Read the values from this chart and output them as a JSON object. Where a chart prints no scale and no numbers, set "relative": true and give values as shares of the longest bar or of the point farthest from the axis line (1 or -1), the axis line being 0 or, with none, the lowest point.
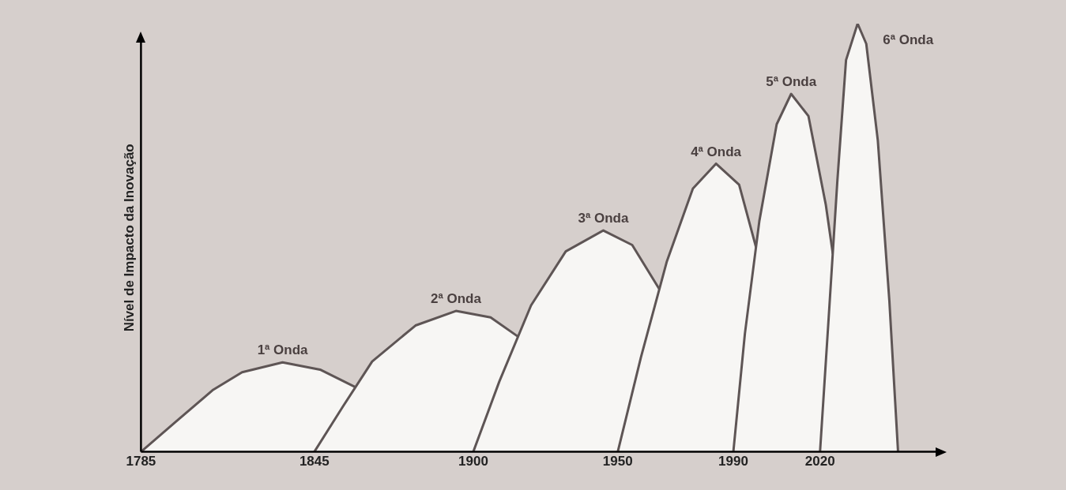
{
  "chart_data": {
    "type": "area",
    "ylabel": "Nível de Impacto da Inovação",
    "relative": true,
    "grid": false,
    "legend": false,
    "marker": "none",
    "xlim": [
      1785,
      2060
    ],
    "xticks": [
      1785,
      1845,
      1900,
      1950,
      1990,
      2020
    ],
    "series": [
      {
        "name": "1ª Onda",
        "color": "#f7f6f4",
        "x": [
          1785,
          1797,
          1810,
          1820,
          1834,
          1847,
          1859.2
        ],
        "values": [
          0,
          0.07,
          0.145,
          0.186,
          0.209,
          0.192,
          0.151
        ]
      },
      {
        "name": "2ª Onda",
        "color": "#f7f6f4",
        "x": [
          1845,
          1855,
          1865,
          1880,
          1894,
          1906,
          1915.5
        ],
        "values": [
          0,
          0.107,
          0.211,
          0.295,
          0.329,
          0.314,
          0.269
        ]
      },
      {
        "name": "3ª Onda",
        "color": "#f7f6f4",
        "x": [
          1900,
          1909,
          1920,
          1932,
          1945,
          1955,
          1964.4
        ],
        "values": [
          0,
          0.164,
          0.342,
          0.468,
          0.517,
          0.483,
          0.38
        ]
      },
      {
        "name": "4ª Onda",
        "color": "#f7f6f4",
        "x": [
          1950,
          1958,
          1967,
          1976,
          1984,
          1992,
          1998
        ],
        "values": [
          0,
          0.22,
          0.445,
          0.615,
          0.673,
          0.624,
          0.474
        ]
      },
      {
        "name": "5ª Onda",
        "color": "#f7f6f4",
        "x": [
          1990,
          1994,
          1999,
          2005,
          2010,
          2016,
          2022,
          2024.4
        ],
        "values": [
          0,
          0.276,
          0.539,
          0.765,
          0.836,
          0.784,
          0.577,
          0.464
        ]
      },
      {
        "name": "6ª Onda",
        "color": "#f7f6f4",
        "x": [
          2020,
          2023,
          2026,
          2029,
          2033,
          2036,
          2040,
          2044,
          2047
        ],
        "values": [
          0,
          0.314,
          0.633,
          0.915,
          1,
          0.953,
          0.727,
          0.352,
          0
        ]
      }
    ]
  }
}
